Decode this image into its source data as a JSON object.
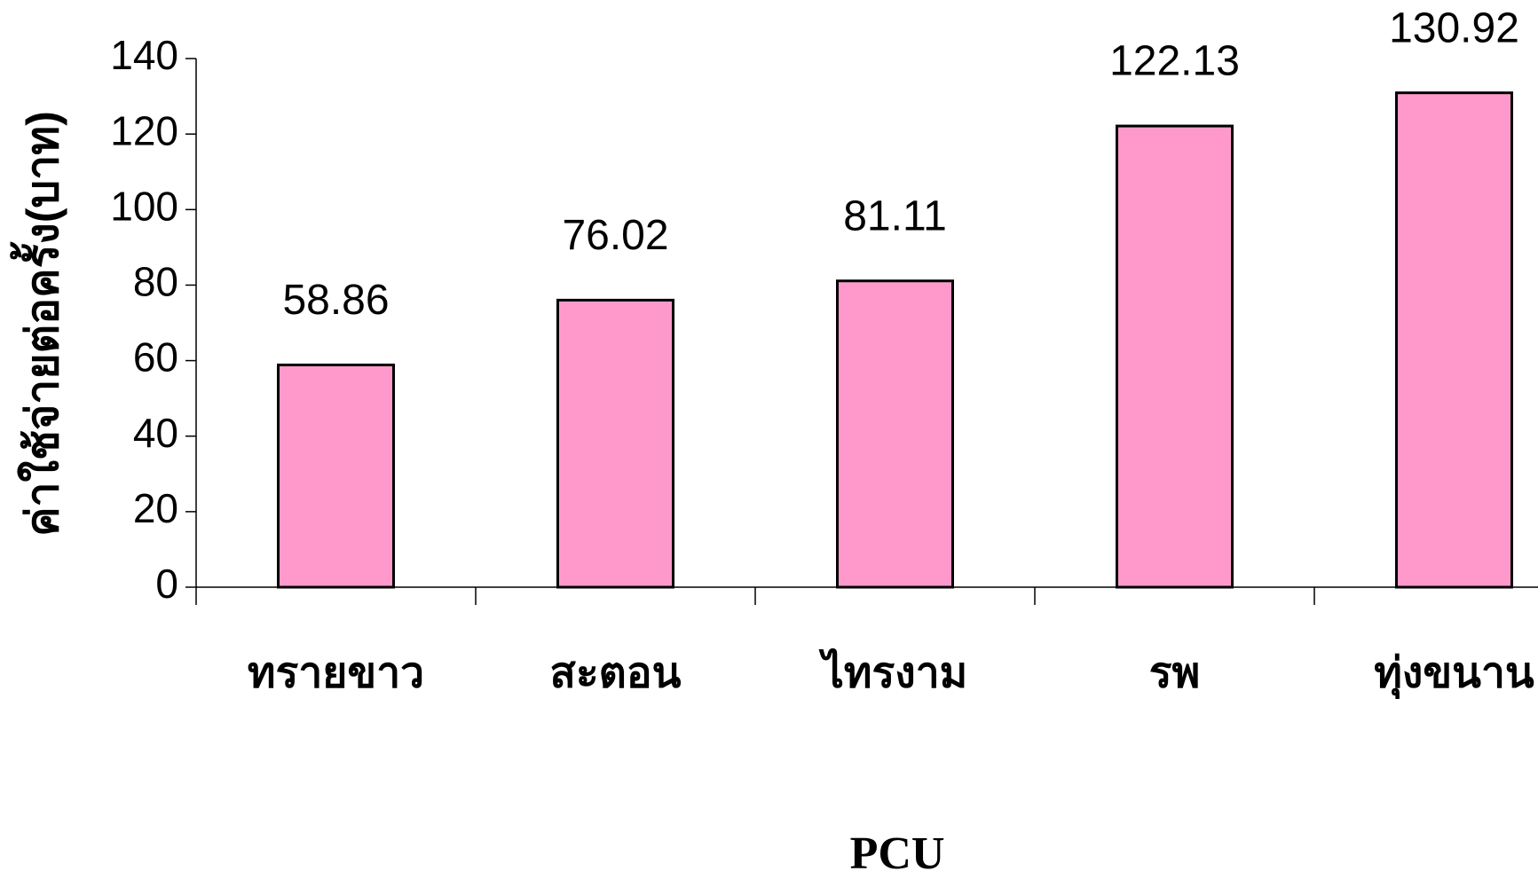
{
  "chart_data": {
    "type": "bar",
    "y_label": "ค่าใช้จ่ายต่อครั้ง(บาท)",
    "x_label": "PCU",
    "categories": [
      "ทรายขาว",
      "สะตอน",
      "ไทรงาม",
      "รพ",
      "ทุ่งขนาน"
    ],
    "values": [
      58.86,
      76.02,
      81.11,
      122.13,
      130.92
    ],
    "color": "#ff99cc",
    "ylim": [
      0,
      140
    ],
    "yticks": [
      0,
      20,
      40,
      60,
      80,
      100,
      120,
      140
    ],
    "grid": false
  }
}
